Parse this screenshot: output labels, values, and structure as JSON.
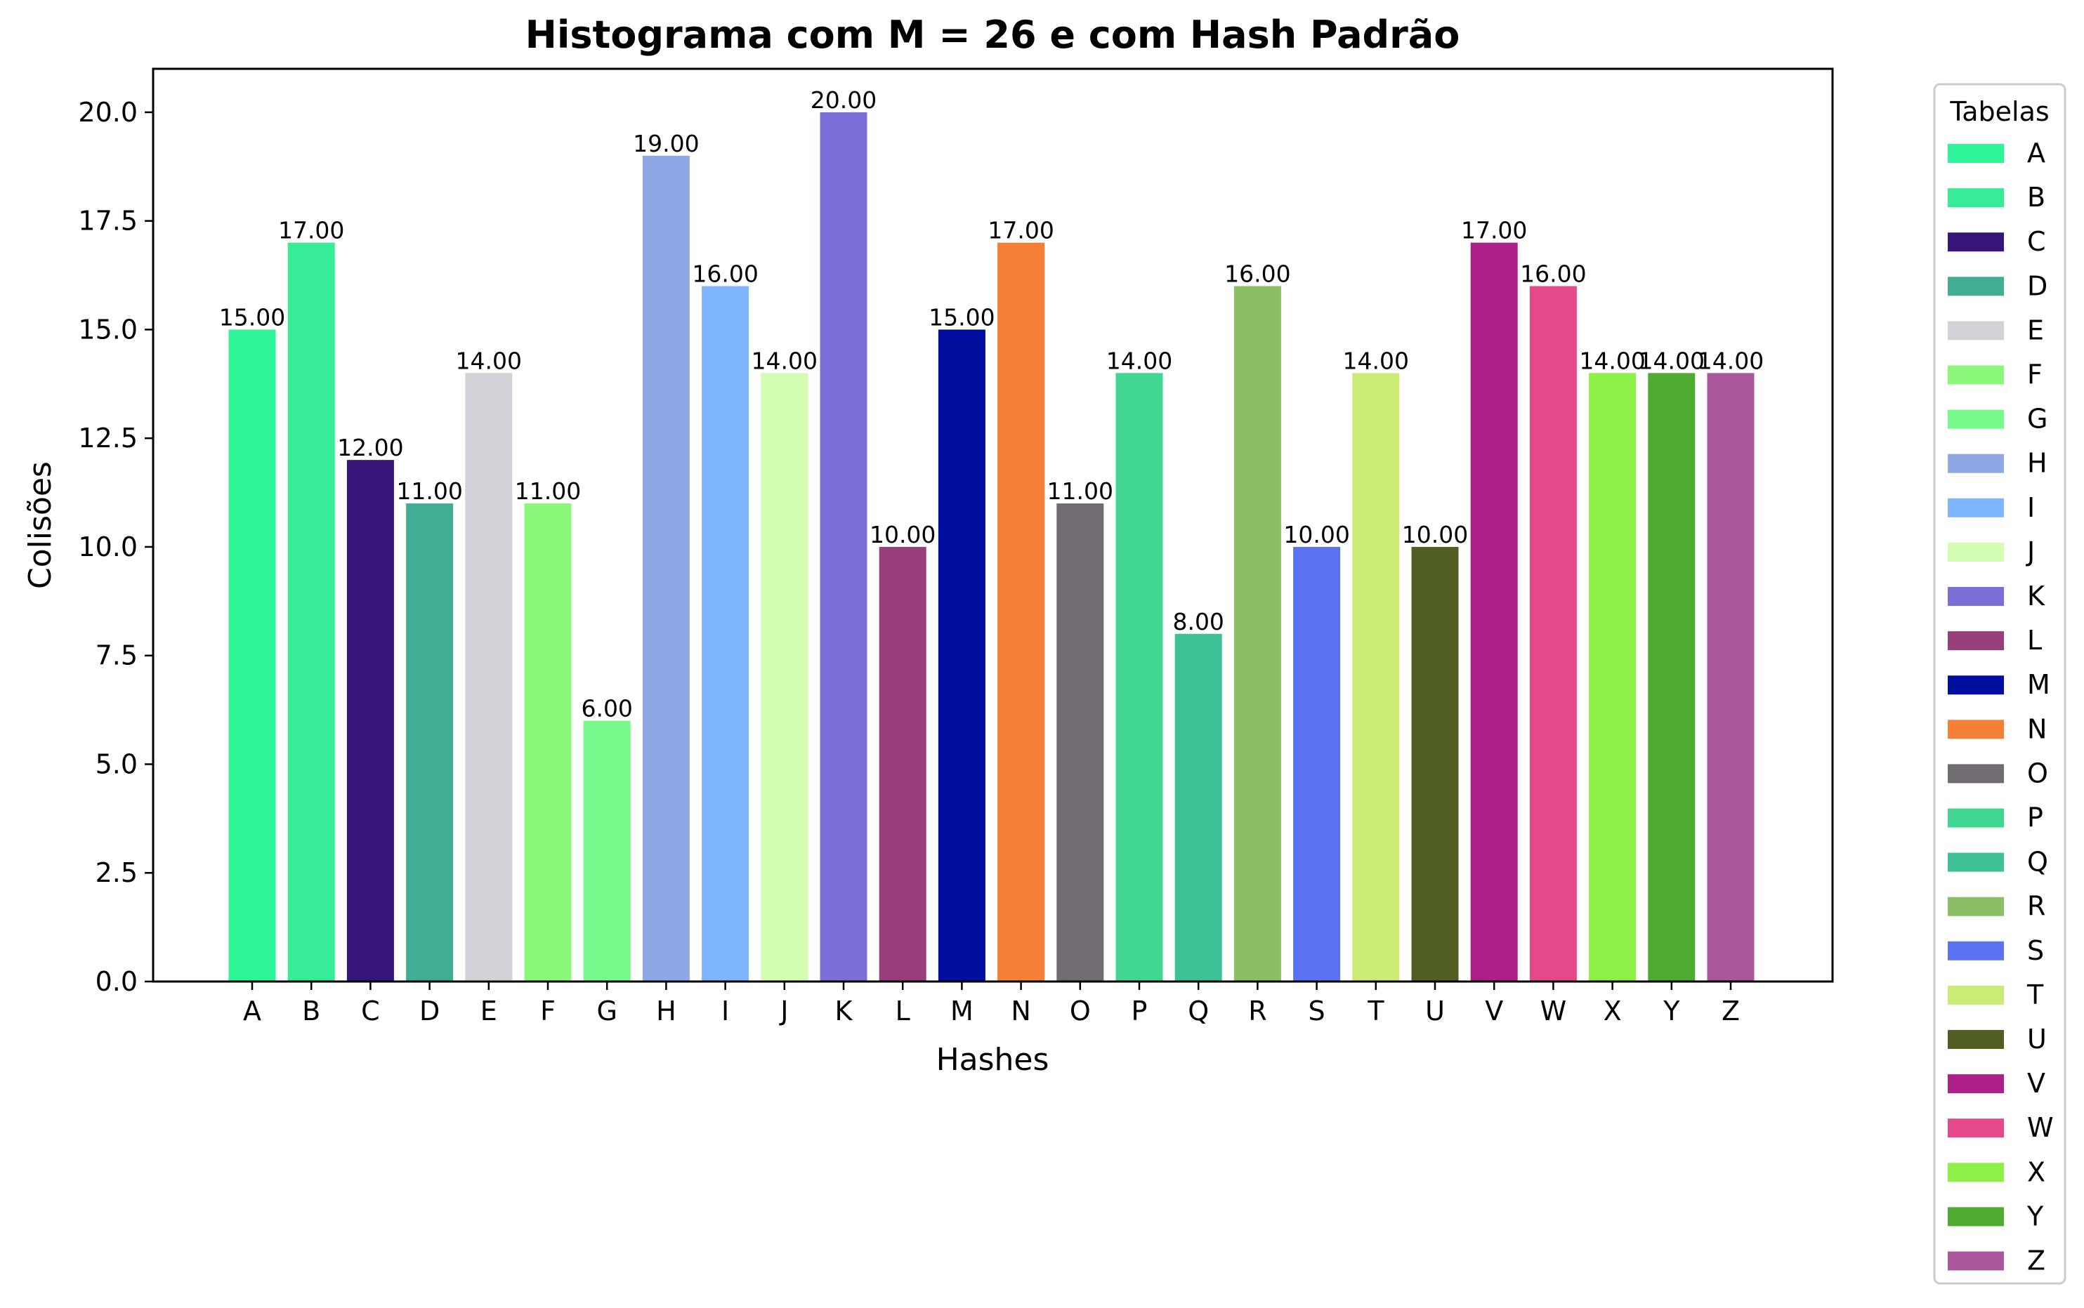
{
  "chart_data": {
    "type": "bar",
    "title": "Histograma com M = 26 e com Hash Padrão",
    "xlabel": "Hashes",
    "ylabel": "Colisões",
    "ylim": [
      0,
      21
    ],
    "yticks": [
      "0.0",
      "2.5",
      "5.0",
      "7.5",
      "10.0",
      "12.5",
      "15.0",
      "17.5",
      "20.0"
    ],
    "ytick_values": [
      0,
      2.5,
      5,
      7.5,
      10,
      12.5,
      15,
      17.5,
      20
    ],
    "categories": [
      "A",
      "B",
      "C",
      "D",
      "E",
      "F",
      "G",
      "H",
      "I",
      "J",
      "K",
      "L",
      "M",
      "N",
      "O",
      "P",
      "Q",
      "R",
      "S",
      "T",
      "U",
      "V",
      "W",
      "X",
      "Y",
      "Z"
    ],
    "values": [
      15,
      17,
      12,
      11,
      14,
      11,
      6,
      19,
      16,
      14,
      20,
      10,
      15,
      17,
      11,
      14,
      8,
      16,
      10,
      14,
      10,
      17,
      16,
      14,
      14,
      14
    ],
    "value_labels": [
      "15.00",
      "17.00",
      "12.00",
      "11.00",
      "14.00",
      "11.00",
      "6.00",
      "19.00",
      "16.00",
      "14.00",
      "20.00",
      "10.00",
      "15.00",
      "17.00",
      "11.00",
      "14.00",
      "8.00",
      "16.00",
      "10.00",
      "14.00",
      "10.00",
      "17.00",
      "16.00",
      "14.00",
      "14.00",
      "14.00"
    ],
    "colors": [
      "#2ef597",
      "#38ec97",
      "#361478",
      "#43ad94",
      "#d5d1d8",
      "#8bf87b",
      "#78f98c",
      "#8ea8e6",
      "#7eb5fe",
      "#d3fdb0",
      "#7b6fd6",
      "#983e7b",
      "#000ea0",
      "#f47f35",
      "#716c71",
      "#41d792",
      "#3ec196",
      "#8abf65",
      "#5b72f1",
      "#cbeb77",
      "#515e23",
      "#ad208a",
      "#e44a8a",
      "#8eef46",
      "#4fab31",
      "#ab579c"
    ],
    "legend": {
      "title": "Tabelas",
      "placement": "outside-right",
      "entries": [
        "A",
        "B",
        "C",
        "D",
        "E",
        "F",
        "G",
        "H",
        "I",
        "J",
        "K",
        "L",
        "M",
        "N",
        "O",
        "P",
        "Q",
        "R",
        "S",
        "T",
        "U",
        "V",
        "W",
        "X",
        "Y",
        "Z"
      ]
    },
    "grid": false
  }
}
